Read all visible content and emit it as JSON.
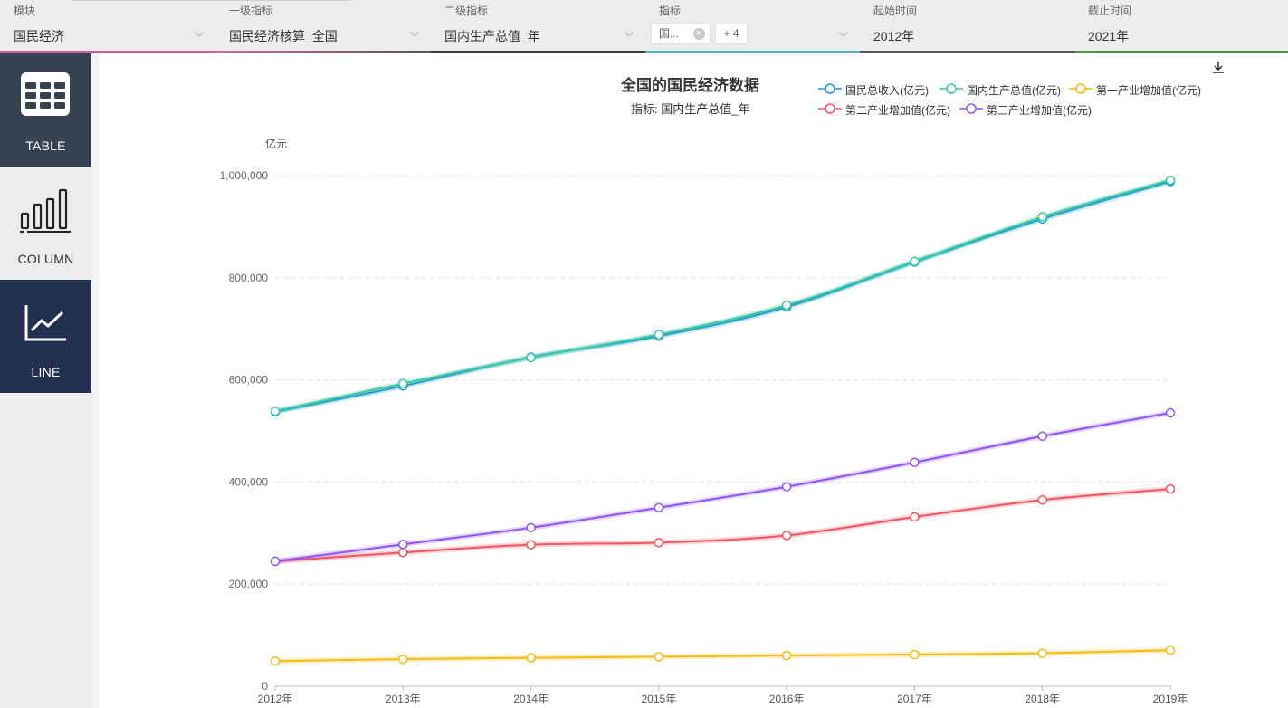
{
  "filters": [
    {
      "label": "模块",
      "value": "国民经济"
    },
    {
      "label": "一级指标",
      "value": "国民经济核算_全国"
    },
    {
      "label": "二级指标",
      "value": "国内生产总值_年"
    },
    {
      "label": "指标",
      "chip": "国...",
      "more": "+ 4"
    },
    {
      "label": "起始时间",
      "value": "2012年"
    },
    {
      "label": "截止时间",
      "value": "2021年"
    }
  ],
  "sidebar": {
    "items": [
      {
        "label": "TABLE"
      },
      {
        "label": "COLUMN"
      },
      {
        "label": "LINE"
      }
    ]
  },
  "colors": {
    "filter_underline_1": "#e0569a",
    "filter_underline_2": "#333333",
    "filter_underline_3": "#49b6c8",
    "filter_underline_4": "#4a9a3e",
    "sidebar_active": "#223150",
    "sidebar_table": "#374251"
  },
  "icons": {
    "table": "table-grid-icon",
    "column": "bar-chart-icon",
    "line": "line-chart-icon",
    "download": "download-icon",
    "dropdown": "chevron-down-icon",
    "chip_close": "close-circle-icon"
  },
  "chart_data": {
    "type": "line",
    "title": "全国的国民经济数据",
    "subtitle": "指标: 国内生产总值_年",
    "y_unit": "亿元",
    "categories": [
      "2012年",
      "2013年",
      "2014年",
      "2015年",
      "2016年",
      "2017年",
      "2018年",
      "2019年"
    ],
    "y_ticks": [
      "0",
      "200,000",
      "400,000",
      "600,000",
      "800,000",
      "1,000,000"
    ],
    "ylim": [
      0,
      1000000
    ],
    "grid": true,
    "legend_position": "top-right",
    "series": [
      {
        "name": "国民总收入(亿元)",
        "color": "#1f93d8",
        "values": [
          537300,
          588100,
          644400,
          685600,
          742700,
          830900,
          915200,
          988500
        ]
      },
      {
        "name": "国内生产总值(亿元)",
        "color": "#36c9a2",
        "values": [
          538600,
          592900,
          643600,
          688900,
          746400,
          832000,
          919300,
          990900
        ]
      },
      {
        "name": "第一产业增加值(亿元)",
        "color": "#f7bc11",
        "values": [
          49100,
          53000,
          55600,
          57800,
          60100,
          62100,
          64700,
          70500
        ]
      },
      {
        "name": "第二产业增加值(亿元)",
        "color": "#f2555f",
        "values": [
          244600,
          261900,
          277300,
          281300,
          295400,
          331600,
          364800,
          386200
        ]
      },
      {
        "name": "第三产业增加值(亿元)",
        "color": "#8f54f0",
        "values": [
          244800,
          277900,
          310600,
          349700,
          390800,
          438400,
          489700,
          535400
        ]
      }
    ]
  }
}
